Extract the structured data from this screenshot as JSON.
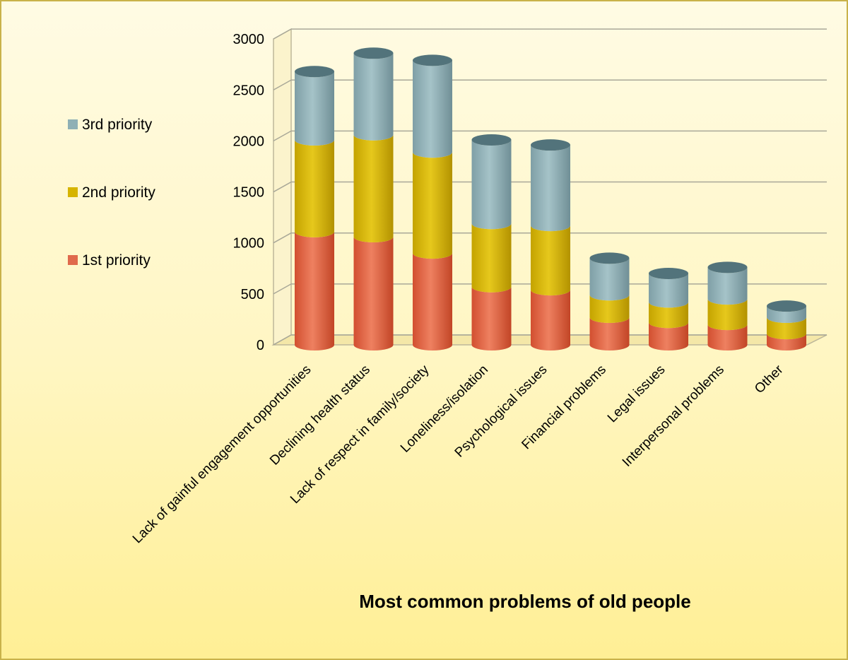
{
  "chart_data": {
    "type": "bar",
    "stacked": true,
    "style": "3d-cylinder",
    "title": "Most common problems of old people",
    "xlabel": "",
    "ylabel": "",
    "ylim": [
      0,
      3000
    ],
    "yticks": [
      "0",
      "500",
      "1000",
      "1500",
      "2000",
      "2500",
      "3000"
    ],
    "grid": true,
    "legend_position": "left",
    "categories": [
      "Lack of gainful engagement opportunities",
      "Declining health status",
      "Lack of respect in family/society",
      "Loneliness/isolation",
      "Psychological issues",
      "Financial problems",
      "Legal issues",
      "Interpersonal problems",
      "Other"
    ],
    "series": [
      {
        "name": "1st priority",
        "color": "#e06a4c",
        "values": [
          1110,
          1060,
          900,
          570,
          540,
          270,
          220,
          200,
          110
        ]
      },
      {
        "name": "2nd priority",
        "color": "#d6b400",
        "values": [
          900,
          1000,
          990,
          620,
          630,
          220,
          200,
          250,
          160
        ]
      },
      {
        "name": "3rd priority",
        "color": "#8fb0b5",
        "values": [
          670,
          800,
          900,
          820,
          790,
          360,
          280,
          310,
          110
        ]
      }
    ],
    "legend": [
      "3rd priority",
      "2nd priority",
      "1st priority"
    ]
  }
}
